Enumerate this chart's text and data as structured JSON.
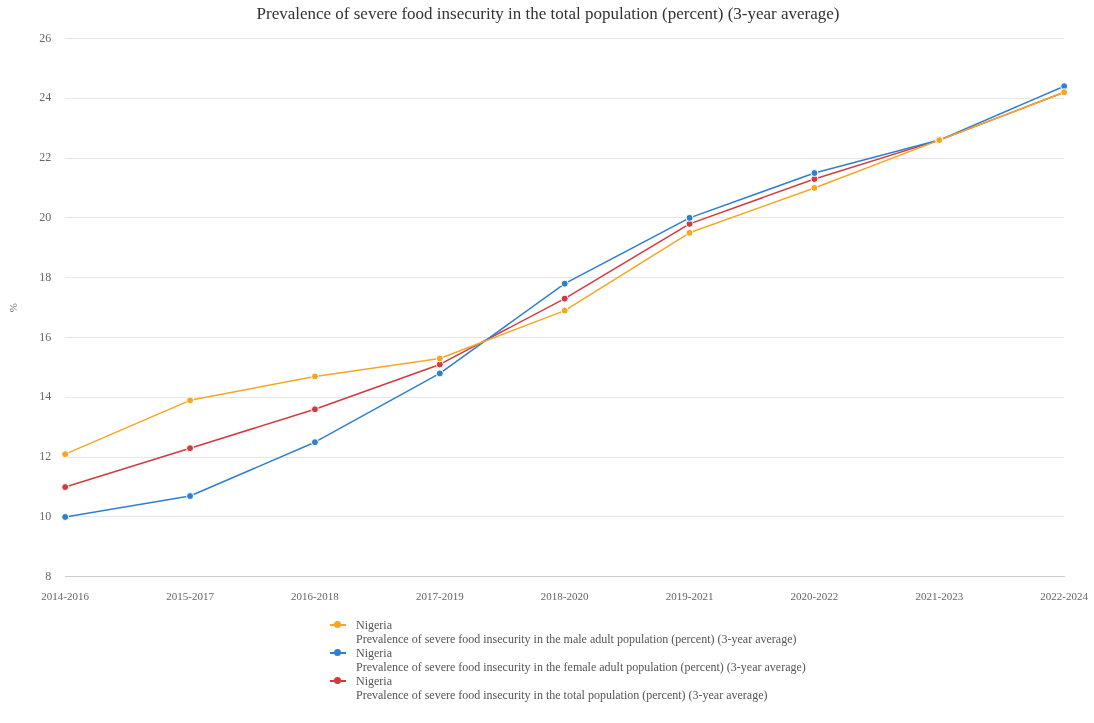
{
  "chart_data": {
    "type": "line",
    "title": "Prevalence of severe food insecurity in the total population (percent) (3-year average)",
    "ylabel": "%",
    "categories": [
      "2014-2016",
      "2015-2017",
      "2016-2018",
      "2017-2019",
      "2018-2020",
      "2019-2021",
      "2020-2022",
      "2021-2023",
      "2022-2024"
    ],
    "series": [
      {
        "name": "Nigeria\nPrevalence of severe food insecurity in the male adult population (percent) (3-year average)",
        "color": "#f5a623",
        "values": [
          12.1,
          13.9,
          14.7,
          15.3,
          16.9,
          19.5,
          21.0,
          22.6,
          24.2
        ]
      },
      {
        "name": "Nigeria\nPrevalence of severe food insecurity in the female adult population (percent) (3-year average)",
        "color": "#2f7fd1",
        "values": [
          10.0,
          10.7,
          12.5,
          14.8,
          17.8,
          20.0,
          21.5,
          22.6,
          24.4
        ]
      },
      {
        "name": "Nigeria\nPrevalence of severe food insecurity in the total population (percent) (3-year average)",
        "color": "#d33a3f",
        "values": [
          11.0,
          12.3,
          13.6,
          15.1,
          17.3,
          19.8,
          21.3,
          22.6,
          24.2
        ]
      }
    ],
    "ylim": [
      8,
      26
    ],
    "yticks": [
      8,
      10,
      12,
      14,
      16,
      18,
      20,
      22,
      24,
      26
    ],
    "grid": "y",
    "legend": "bottom",
    "marker": "circle",
    "line_style": "solid"
  }
}
